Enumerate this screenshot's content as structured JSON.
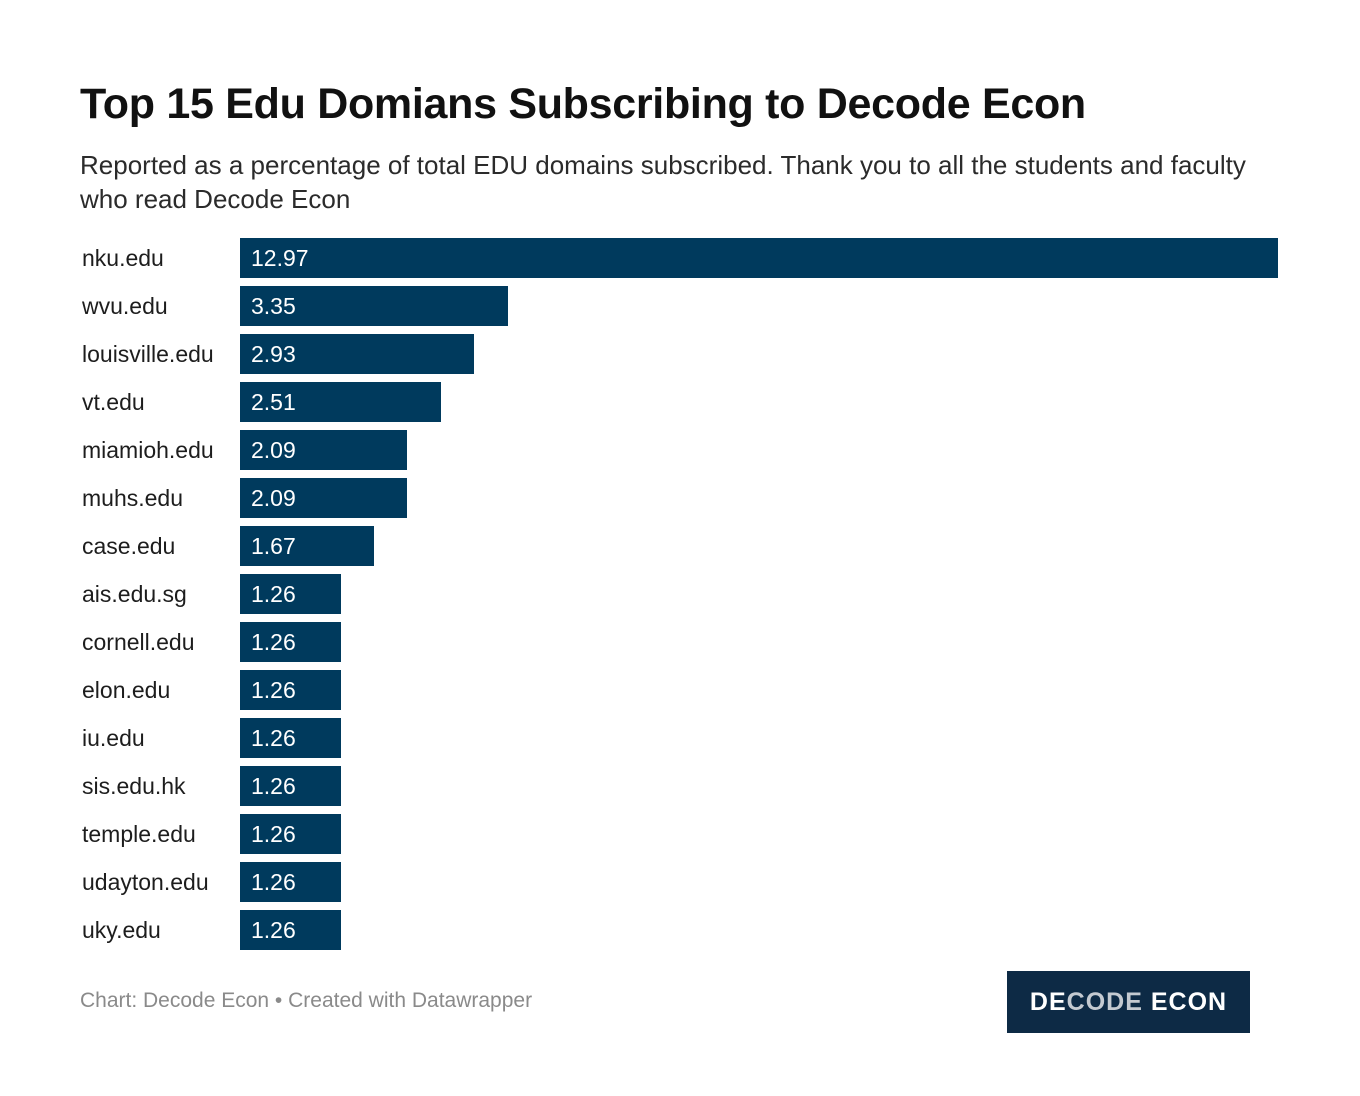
{
  "title": "Top 15 Edu Domians Subscribing to Decode Econ",
  "subtitle": "Reported as a percentage of total EDU domains subscribed. Thank you to all the students and faculty who read Decode Econ",
  "footer": "Chart: Decode Econ • Created with Datawrapper",
  "logo": {
    "text_part1": "DE",
    "text_part2": "CODE",
    "text_part3": " ECON"
  },
  "colors": {
    "bar": "#003a5d",
    "logo_bg": "#0d2a45"
  },
  "chart_data": {
    "type": "bar",
    "orientation": "horizontal",
    "title": "Top 15 Edu Domians Subscribing to Decode Econ",
    "categories": [
      "nku.edu",
      "wvu.edu",
      "louisville.edu",
      "vt.edu",
      "miamioh.edu",
      "muhs.edu",
      "case.edu",
      "ais.edu.sg",
      "cornell.edu",
      "elon.edu",
      "iu.edu",
      "sis.edu.hk",
      "temple.edu",
      "udayton.edu",
      "uky.edu"
    ],
    "values": [
      12.97,
      3.35,
      2.93,
      2.51,
      2.09,
      2.09,
      1.67,
      1.26,
      1.26,
      1.26,
      1.26,
      1.26,
      1.26,
      1.26,
      1.26
    ],
    "value_labels": [
      "12.97",
      "3.35",
      "2.93",
      "2.51",
      "2.09",
      "2.09",
      "1.67",
      "1.26",
      "1.26",
      "1.26",
      "1.26",
      "1.26",
      "1.26",
      "1.26",
      "1.26"
    ],
    "xlim": [
      0,
      12.97
    ],
    "xlabel": "",
    "ylabel": ""
  }
}
